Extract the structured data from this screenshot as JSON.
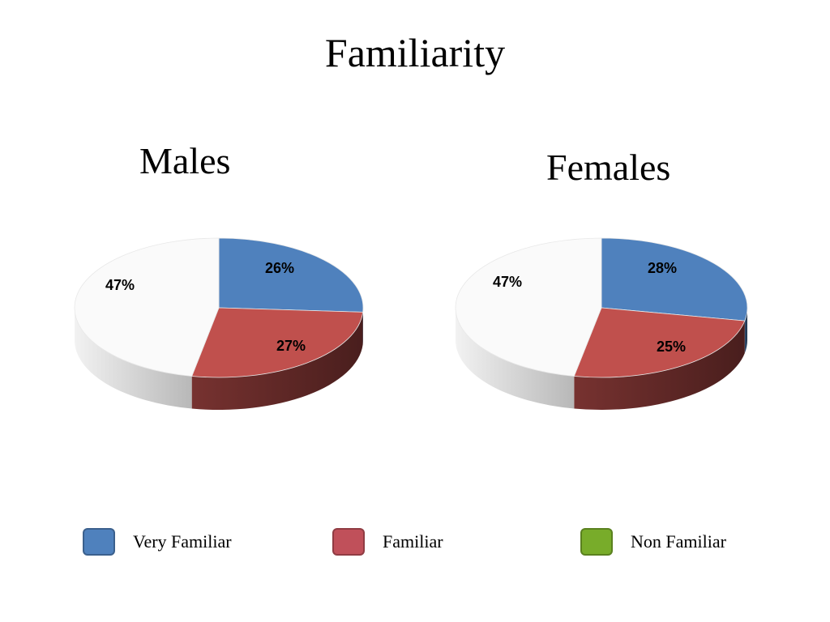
{
  "title": "Familiarity",
  "colors": {
    "very_familiar": "#4f81bd",
    "familiar": "#c0504d",
    "familiar_legend": "#c0505a",
    "non_familiar": "#78ac2a",
    "remainder": "#fafafa"
  },
  "legend": [
    {
      "label": "Very Familiar",
      "color": "#4f81bd"
    },
    {
      "label": "Familiar",
      "color": "#c0505a"
    },
    {
      "label": "Non Familiar",
      "color": "#78ac2a"
    }
  ],
  "chart_data": [
    {
      "type": "pie",
      "title": "Males",
      "slices": [
        {
          "category": "Very Familiar",
          "value": 26,
          "label": "26%",
          "color": "#4f81bd"
        },
        {
          "category": "Familiar",
          "value": 27,
          "label": "27%",
          "color": "#c0504d"
        },
        {
          "category": "",
          "value": 47,
          "label": "47%",
          "color": "#fafafa"
        }
      ]
    },
    {
      "type": "pie",
      "title": "Females",
      "slices": [
        {
          "category": "Very Familiar",
          "value": 28,
          "label": "28%",
          "color": "#4f81bd"
        },
        {
          "category": "Familiar",
          "value": 25,
          "label": "25%",
          "color": "#c0504d"
        },
        {
          "category": "",
          "value": 47,
          "label": "47%",
          "color": "#fafafa"
        }
      ]
    }
  ]
}
